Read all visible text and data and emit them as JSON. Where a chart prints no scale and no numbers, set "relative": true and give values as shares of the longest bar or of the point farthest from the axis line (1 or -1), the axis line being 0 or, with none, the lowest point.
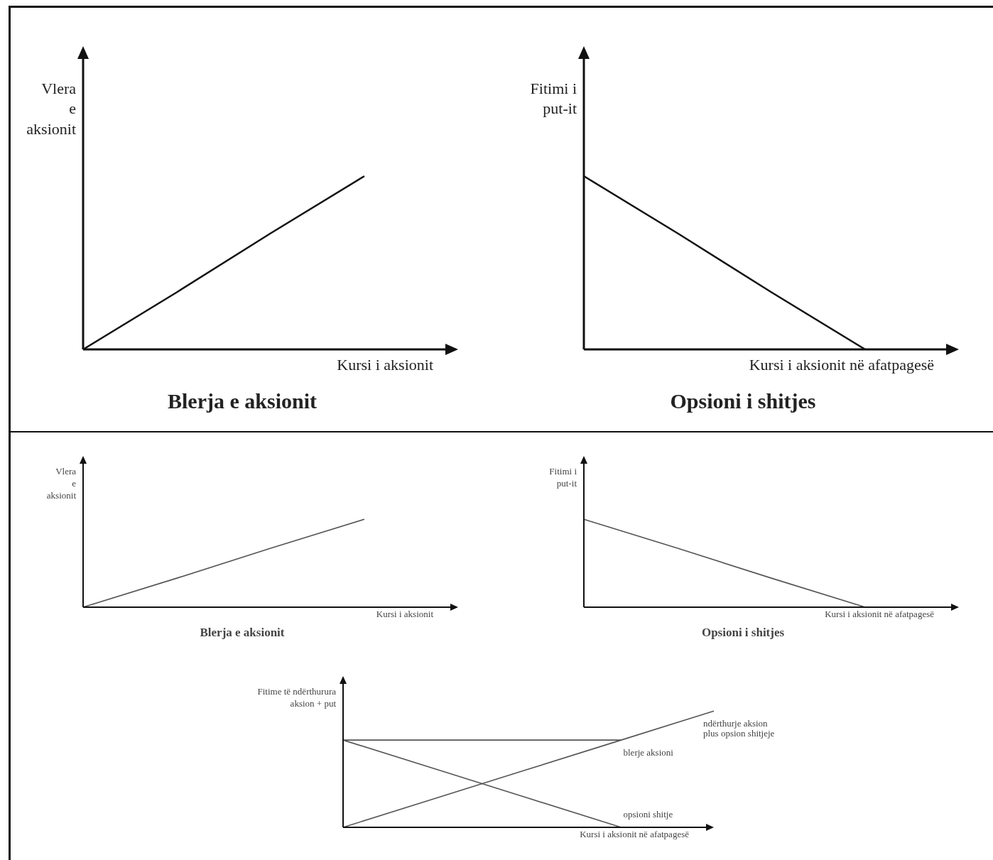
{
  "chart_data": [
    {
      "type": "line",
      "title": "Blerja e aksionit",
      "xlabel": "Kursi i aksionit",
      "ylabel": "Vlera\ne\naksionit",
      "categories": [
        null,
        null,
        null,
        null,
        null
      ],
      "relative": true,
      "marker": "none",
      "series": [
        {
          "color": "#111111",
          "values": [
            0,
            0.33,
            0.67,
            1,
            null
          ]
        }
      ]
    },
    {
      "type": "line",
      "title": "Opsioni i shitjes",
      "xlabel": "Kursi i aksionit në afatpagesë",
      "ylabel": "Fitimi i\nput-it",
      "categories": [
        null,
        null,
        null,
        null,
        null
      ],
      "relative": true,
      "marker": "none",
      "series": [
        {
          "color": "#111111",
          "values": [
            1,
            0.67,
            0.33,
            0,
            null
          ]
        }
      ]
    },
    {
      "type": "line",
      "title": "Blerja e aksionit",
      "xlabel": "Kursi i aksionit",
      "ylabel": "Vlera\ne\naksionit",
      "categories": [
        null,
        null,
        null,
        null,
        null
      ],
      "relative": true,
      "marker": "none",
      "series": [
        {
          "color": "#555555",
          "values": [
            0,
            0.33,
            0.67,
            1,
            null
          ]
        }
      ]
    },
    {
      "type": "line",
      "title": "Opsioni i shitjes",
      "xlabel": "Kursi i aksionit në afatpagesë",
      "ylabel": "Fitimi i\nput-it",
      "categories": [
        null,
        null,
        null,
        null,
        null
      ],
      "relative": true,
      "marker": "none",
      "series": [
        {
          "color": "#555555",
          "values": [
            1,
            0.67,
            0.33,
            0,
            null
          ]
        }
      ]
    },
    {
      "type": "line",
      "xlabel": "Kursi i aksionit në afatpagesë",
      "ylabel": "Fitime të ndërthurura\naksion + put",
      "categories": [
        null,
        null,
        null,
        null,
        null
      ],
      "relative": true,
      "marker": "none",
      "series": [
        {
          "name": "ndërthurje aksion\nplus opsion shitjeje",
          "color": "#555555",
          "values": [
            0.75,
            0.75,
            0.75,
            0.75,
            1
          ]
        },
        {
          "name": "blerje aksioni",
          "color": "#555555",
          "values": [
            0,
            0.25,
            0.5,
            0.75,
            null
          ]
        },
        {
          "name": "opsioni shitje",
          "color": "#555555",
          "values": [
            0.75,
            0.5,
            0.25,
            0,
            null
          ]
        }
      ]
    }
  ]
}
